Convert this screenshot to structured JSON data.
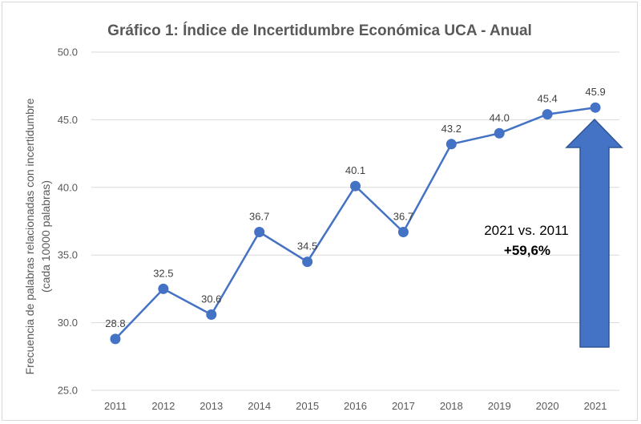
{
  "chart_data": {
    "type": "line",
    "title": "Gráfico 1: Índice de Incertidumbre Económica UCA - Anual",
    "ylabel_line1": "Frecuencia de palabras relacionadas con incertidumbre",
    "ylabel_line2": "(cada 10000 palabras)",
    "xlabel": "",
    "categories": [
      "2011",
      "2012",
      "2013",
      "2014",
      "2015",
      "2016",
      "2017",
      "2018",
      "2019",
      "2020",
      "2021"
    ],
    "values": [
      28.8,
      32.5,
      30.6,
      36.7,
      34.5,
      40.1,
      36.7,
      43.2,
      44.0,
      45.4,
      45.9
    ],
    "data_labels": [
      "28.8",
      "32.5",
      "30.6",
      "36.7",
      "34.5",
      "40.1",
      "36.7",
      "43.2",
      "44.0",
      "45.4",
      "45.9"
    ],
    "ylim": [
      25,
      50
    ],
    "yticks": [
      "25.0",
      "30.0",
      "35.0",
      "40.0",
      "45.0",
      "50.0"
    ],
    "grid": true,
    "line_color": "#4472c4",
    "arrow_color": "#4472c4",
    "annotation": {
      "line1": "2021 vs. 2011",
      "line2": "+59,6%"
    }
  }
}
